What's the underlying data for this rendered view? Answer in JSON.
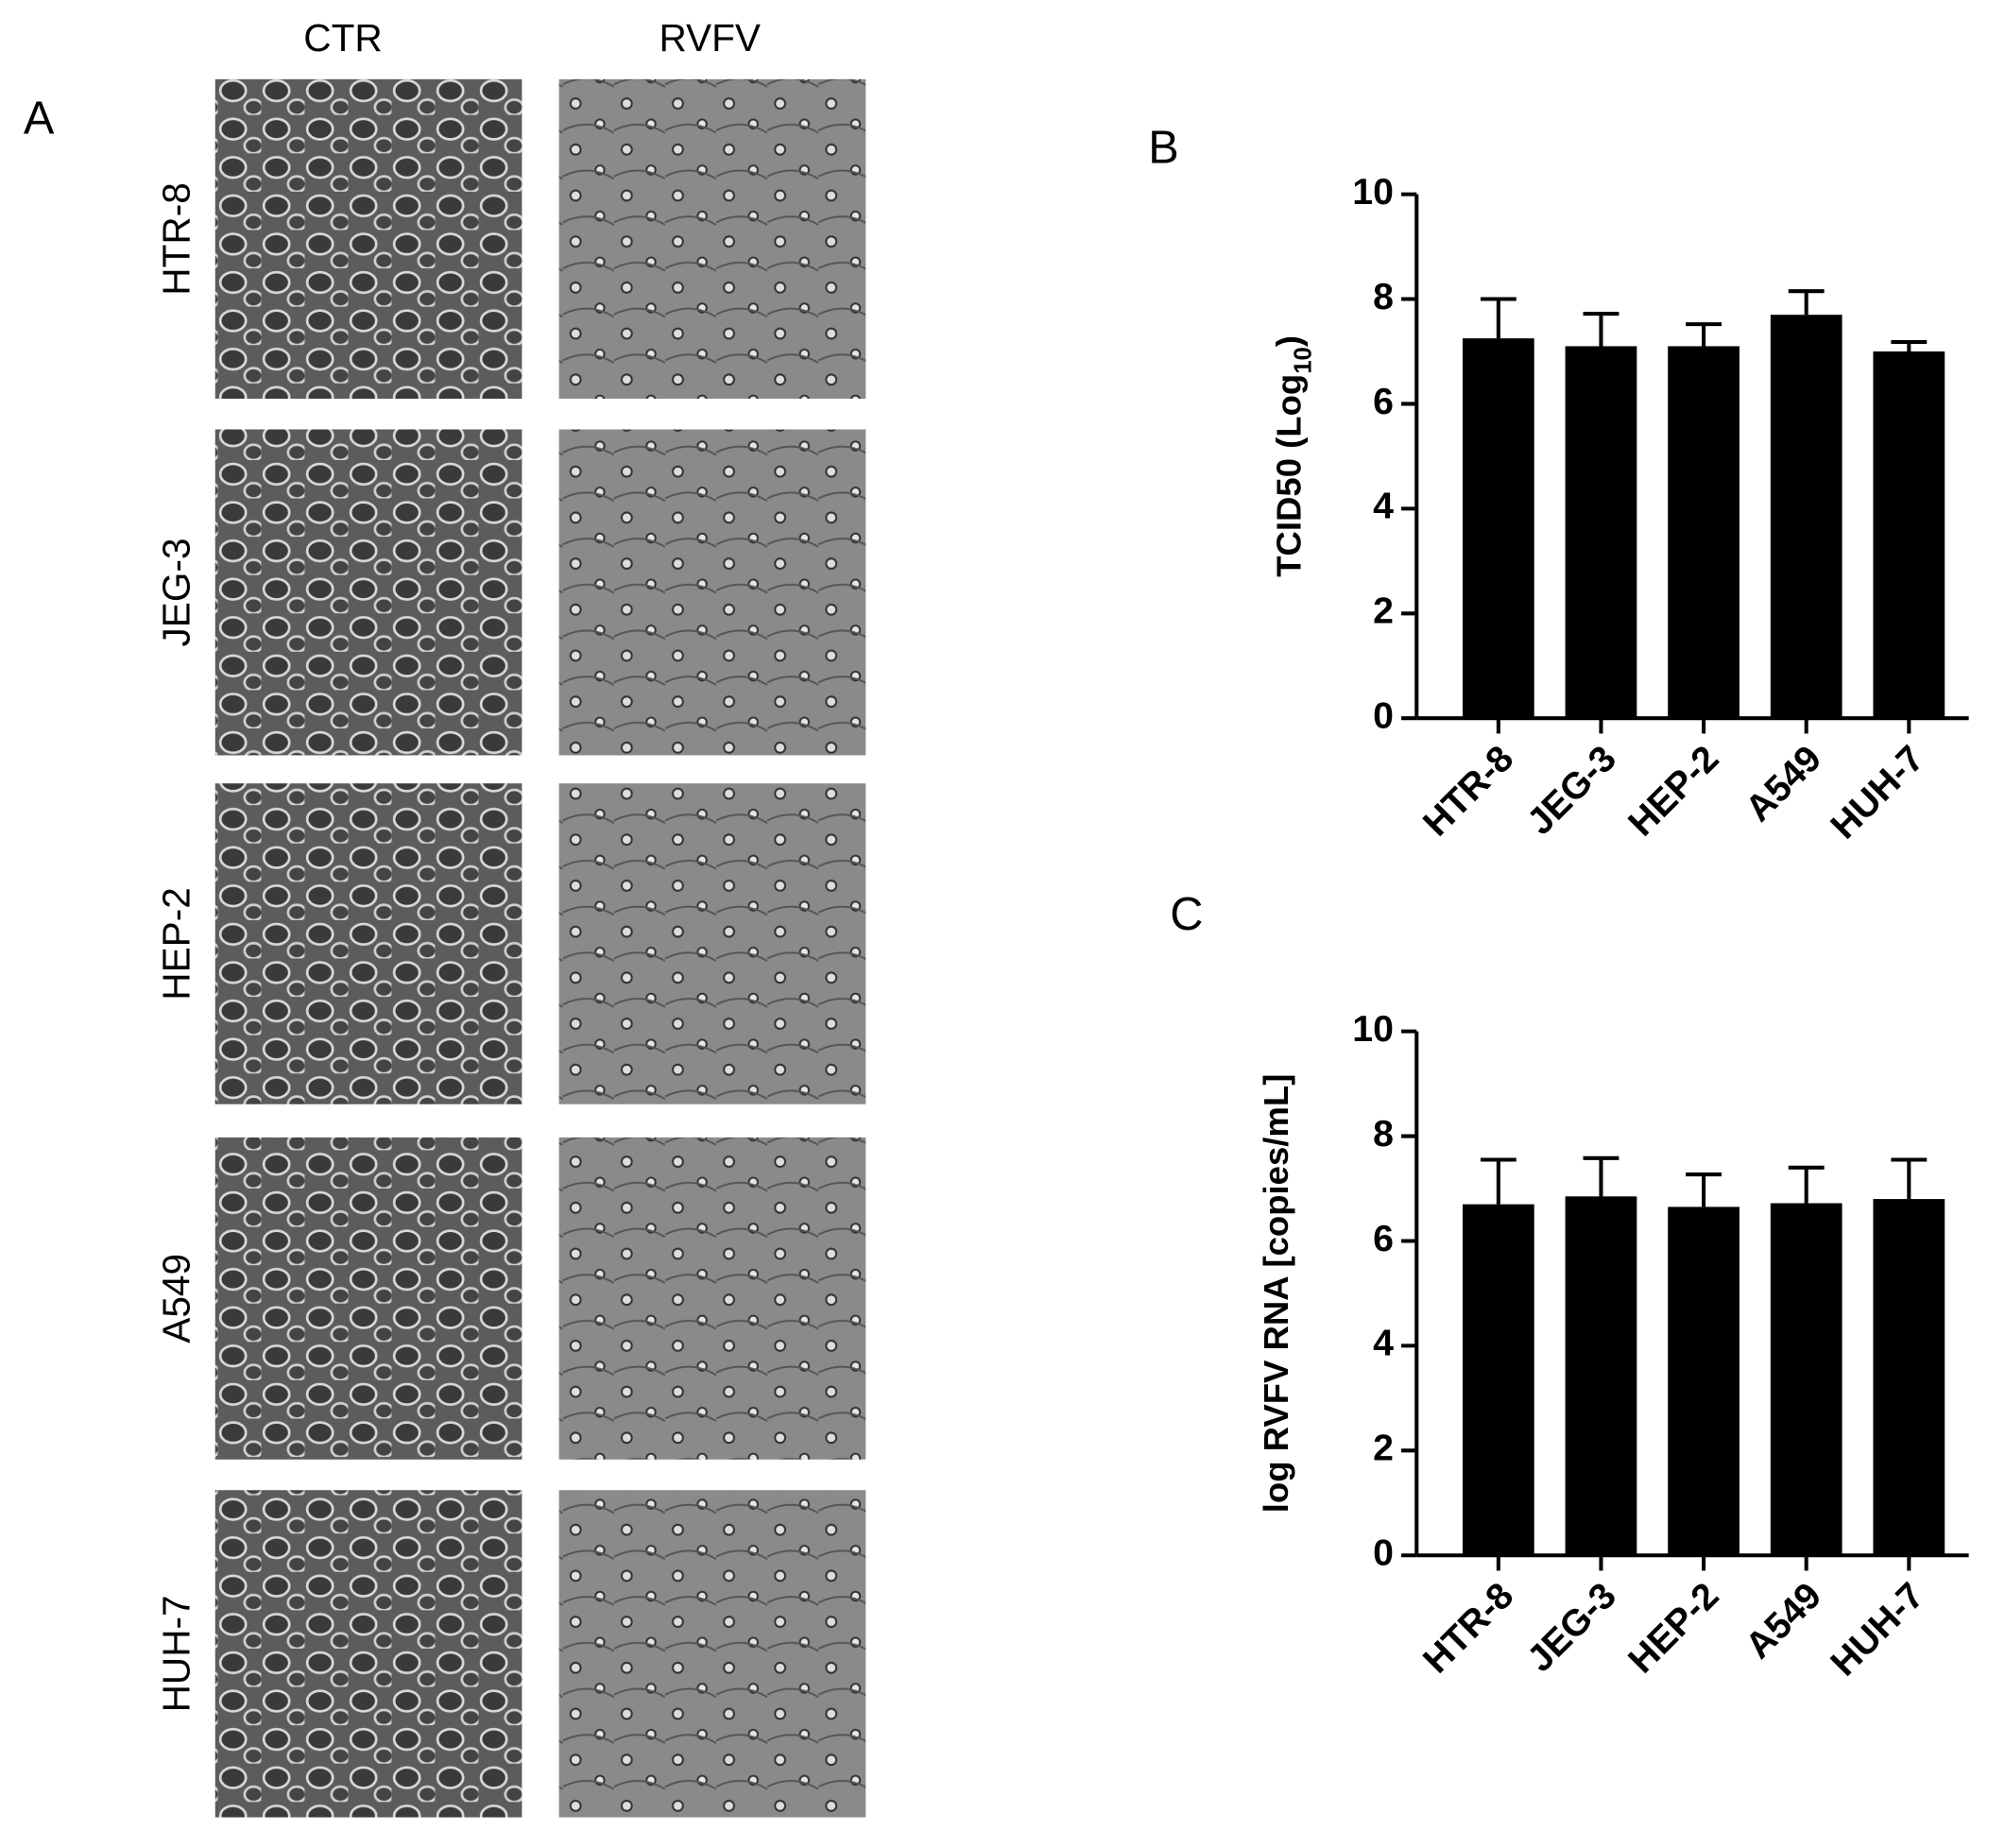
{
  "panel_a": {
    "label": "A",
    "columns": [
      "CTR",
      "RVFV"
    ],
    "rows": [
      "HTR-8",
      "JEG-3",
      "HEP-2",
      "A549",
      "HUH-7"
    ]
  },
  "chart_data": [
    {
      "type": "bar",
      "label": "B",
      "ylabel": {
        "text": "TCID50 (Log",
        "subscript": "10",
        "suffix": ")"
      },
      "categories": [
        "HTR-8",
        "JEG-3",
        "HEP-2",
        "A549",
        "HUH-7"
      ],
      "values": [
        7.25,
        7.1,
        7.1,
        7.7,
        7.0
      ],
      "errors": [
        0.75,
        0.62,
        0.42,
        0.45,
        0.18
      ],
      "color": "#000000",
      "ylim": [
        0,
        10
      ],
      "yticks": [
        0,
        2,
        4,
        6,
        8,
        10
      ]
    },
    {
      "type": "bar",
      "label": "C",
      "ylabel": {
        "text": "log RVFV RNA [copies/mL]"
      },
      "categories": [
        "HTR-8",
        "JEG-3",
        "HEP-2",
        "A549",
        "HUH-7"
      ],
      "values": [
        6.7,
        6.85,
        6.65,
        6.72,
        6.8
      ],
      "errors": [
        0.85,
        0.73,
        0.62,
        0.68,
        0.75
      ],
      "color": "#000000",
      "ylim": [
        0,
        10
      ],
      "yticks": [
        0,
        2,
        4,
        6,
        8,
        10
      ]
    }
  ]
}
